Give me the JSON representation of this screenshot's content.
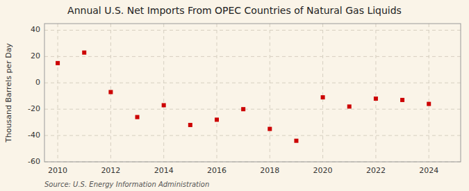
{
  "chart_data": {
    "type": "scatter",
    "title": "Annual U.S. Net Imports From OPEC Countries of Natural Gas Liquids",
    "ylabel": "Thousand Barrels per Day",
    "annotations": [
      "Source: U.S. Energy Information Administration"
    ],
    "x": [
      2010,
      2011,
      2012,
      2013,
      2014,
      2015,
      2016,
      2017,
      2018,
      2019,
      2020,
      2021,
      2022,
      2023,
      2024
    ],
    "values": [
      15,
      23,
      -7,
      -26,
      -17,
      -32,
      -28,
      -20,
      -35,
      -44,
      -11,
      -18,
      -12,
      -13,
      -16
    ],
    "color": "#cc0000",
    "marker": "square",
    "xlim": [
      2009.5,
      2025.2
    ],
    "ylim": [
      -60,
      45
    ],
    "xticks": [
      2010,
      2012,
      2014,
      2016,
      2018,
      2020,
      2022,
      2024
    ],
    "yticks": [
      -60,
      -40,
      -20,
      0,
      20,
      40
    ],
    "grid": true
  }
}
